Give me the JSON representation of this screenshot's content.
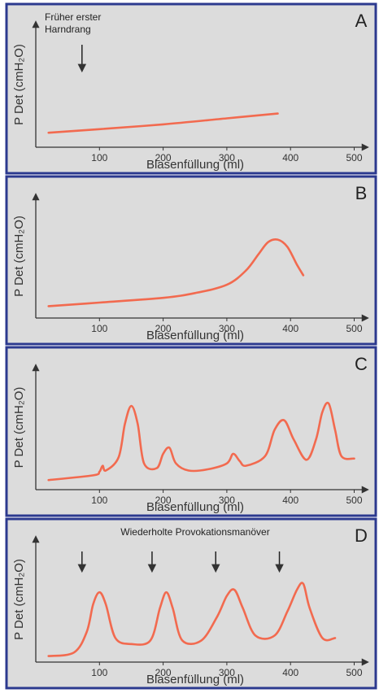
{
  "colors": {
    "background": "#dcdcdc",
    "border": "#2c3a8f",
    "curve": "#f26a4f",
    "axis": "#333333",
    "text": "#333333"
  },
  "chart_data": [
    {
      "type": "line",
      "panel_letter": "A",
      "xlabel": "Blasenfüllung (ml)",
      "ylabel": "P Det (cmH₂O)",
      "xticks": [
        100,
        200,
        300,
        400,
        500
      ],
      "xlim": [
        0,
        530
      ],
      "ylim": [
        0,
        100
      ],
      "annotation": {
        "lines": [
          "Früher erster",
          "Harndrang"
        ]
      },
      "arrows_at_x": [
        70
      ],
      "series": [
        {
          "x": [
            20,
            100,
            200,
            300,
            380
          ],
          "values": [
            12,
            15,
            19,
            24,
            28
          ]
        }
      ]
    },
    {
      "type": "line",
      "panel_letter": "B",
      "xlabel": "Blasenfüllung (ml)",
      "ylabel": "P Det (cmH₂O)",
      "xticks": [
        100,
        200,
        300,
        400,
        500
      ],
      "xlim": [
        0,
        530
      ],
      "ylim": [
        0,
        100
      ],
      "arrows_at_x": [],
      "series": [
        {
          "x": [
            20,
            100,
            200,
            250,
            300,
            330,
            350,
            365,
            380,
            395,
            410,
            420
          ],
          "values": [
            10,
            13,
            17,
            21,
            28,
            40,
            54,
            64,
            66,
            60,
            45,
            36
          ]
        }
      ]
    },
    {
      "type": "line",
      "panel_letter": "C",
      "xlabel": "Blasenfüllung (ml)",
      "ylabel": "P Det (cmH₂O)",
      "xticks": [
        100,
        200,
        300,
        400,
        500
      ],
      "xlim": [
        0,
        530
      ],
      "ylim": [
        0,
        100
      ],
      "arrows_at_x": [],
      "series": [
        {
          "x": [
            20,
            90,
            100,
            105,
            110,
            130,
            140,
            150,
            160,
            170,
            190,
            200,
            210,
            220,
            240,
            270,
            300,
            310,
            320,
            330,
            360,
            375,
            390,
            405,
            425,
            440,
            450,
            460,
            470,
            480,
            500
          ],
          "values": [
            8,
            12,
            15,
            20,
            16,
            27,
            55,
            70,
            55,
            22,
            18,
            30,
            35,
            22,
            16,
            17,
            22,
            30,
            24,
            20,
            28,
            50,
            58,
            42,
            25,
            42,
            65,
            72,
            50,
            28,
            26
          ]
        }
      ]
    },
    {
      "type": "line",
      "panel_letter": "D",
      "xlabel": "Blasenfüllung (ml)",
      "ylabel": "P Det (cmH₂O)",
      "xticks": [
        100,
        200,
        300,
        400,
        500
      ],
      "xlim": [
        0,
        530
      ],
      "ylim": [
        0,
        100
      ],
      "annotation": {
        "lines": [
          "Wiederholte Provokationsmanöver"
        ]
      },
      "arrows_at_x": [
        70,
        180,
        280,
        380
      ],
      "series": [
        {
          "x": [
            20,
            60,
            80,
            90,
            100,
            110,
            125,
            150,
            180,
            195,
            205,
            215,
            230,
            260,
            285,
            300,
            312,
            325,
            345,
            375,
            395,
            410,
            420,
            430,
            450,
            470
          ],
          "values": [
            5,
            8,
            25,
            48,
            58,
            48,
            20,
            15,
            18,
            45,
            58,
            45,
            18,
            18,
            38,
            55,
            60,
            45,
            22,
            22,
            42,
            60,
            65,
            45,
            20,
            20
          ]
        }
      ]
    }
  ]
}
